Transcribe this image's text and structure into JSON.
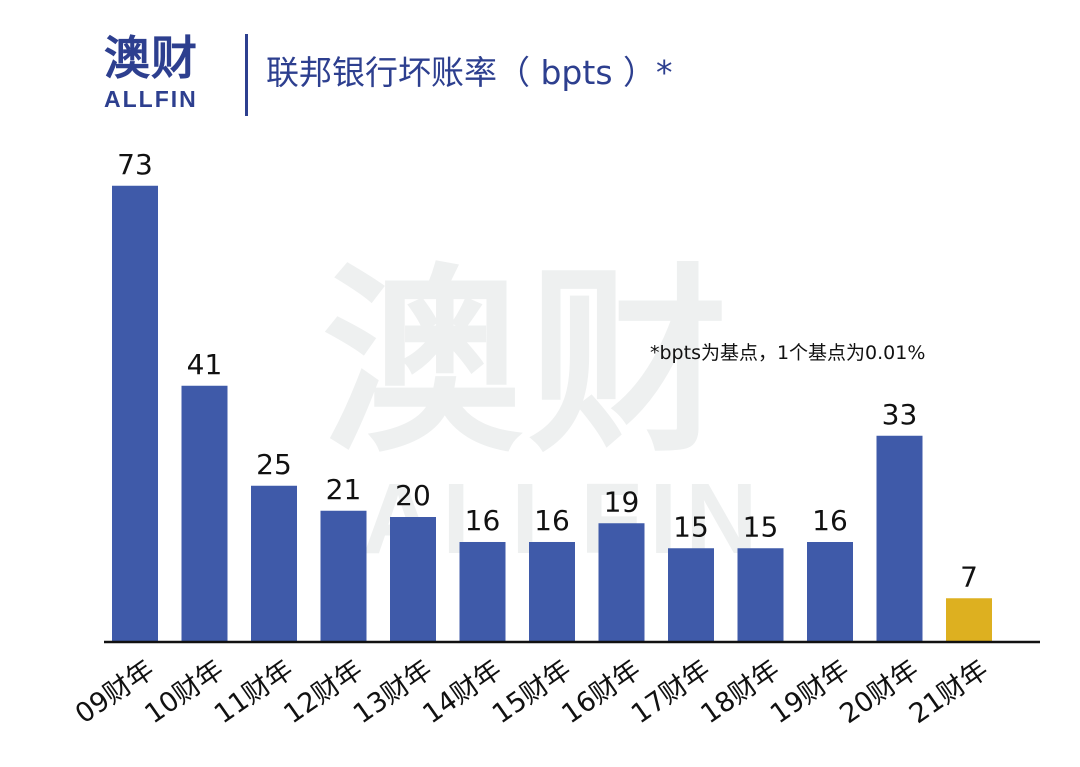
{
  "logo": {
    "cn": "澳财",
    "en": "ALLFIN"
  },
  "watermark": {
    "cn": "澳财",
    "en": "ALLFIN"
  },
  "colors": {
    "bar": "#3f5aa9",
    "highlight": "#ddb020",
    "brand": "#2d3f8f",
    "axis": "#111111"
  },
  "chart_data": {
    "type": "bar",
    "title": "联邦银行坏账率（ bpts ）*",
    "note": "*bpts为基点，1个基点为0.01%",
    "categories": [
      "09财年",
      "10财年",
      "11财年",
      "12财年",
      "13财年",
      "14财年",
      "15财年",
      "16财年",
      "17财年",
      "18财年",
      "19财年",
      "20财年",
      "21财年"
    ],
    "values": [
      73,
      41,
      25,
      21,
      20,
      16,
      16,
      19,
      15,
      15,
      16,
      33,
      7
    ],
    "highlight_category": "21财年",
    "xlabel": "",
    "ylabel": "",
    "ylim": [
      0,
      80
    ],
    "grid": false,
    "legend": "none"
  }
}
